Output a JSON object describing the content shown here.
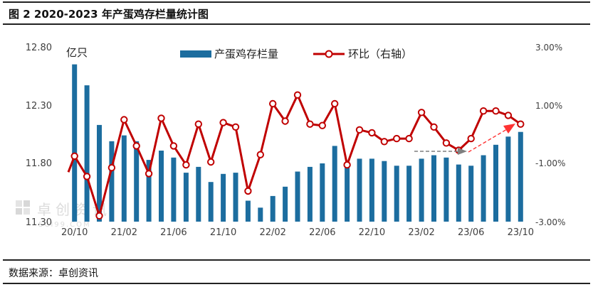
{
  "header": {
    "title": "图 2 2020-2023 年产蛋鸡存栏量统计图"
  },
  "footer": {
    "source": "数据来源：卓创资讯"
  },
  "watermark": {
    "text": "卓创资讯",
    "sub": "SCI99.COM"
  },
  "colors": {
    "bar": "#1c6d9f",
    "line": "#c00000",
    "marker_fill": "#ffffff",
    "axis_text": "#404040",
    "arrow": "#7f7f7f",
    "arrow_red": "#ff3333"
  },
  "chart_data": {
    "type": "bar+line",
    "left_unit": "亿只",
    "left_ticks": [
      "12.80",
      "12.30",
      "11.80",
      "11.30"
    ],
    "right_ticks": [
      "3.00%",
      "1.00%",
      "-1.00%",
      "-3.00%"
    ],
    "ylim_left": [
      11.3,
      12.8
    ],
    "ylim_right": [
      -3.0,
      3.0
    ],
    "x_tick_labels": [
      "20/10",
      "21/02",
      "21/06",
      "21/10",
      "22/02",
      "22/06",
      "22/10",
      "23/02",
      "23/06",
      "23/10"
    ],
    "categories": [
      "20/10",
      "20/11",
      "20/12",
      "21/01",
      "21/02",
      "21/03",
      "21/04",
      "21/05",
      "21/06",
      "21/07",
      "21/08",
      "21/09",
      "21/10",
      "21/11",
      "21/12",
      "22/01",
      "22/02",
      "22/03",
      "22/04",
      "22/05",
      "22/06",
      "22/07",
      "22/08",
      "22/09",
      "22/10",
      "22/11",
      "22/12",
      "23/01",
      "23/02",
      "23/03",
      "23/04",
      "23/05",
      "23/06",
      "23/07",
      "23/08",
      "23/09",
      "23/10"
    ],
    "series": [
      {
        "name": "产蛋鸡存栏量",
        "axis": "left",
        "type": "bar",
        "values": [
          12.65,
          12.47,
          12.13,
          11.99,
          12.04,
          11.99,
          11.83,
          11.91,
          11.85,
          11.72,
          11.77,
          11.64,
          11.71,
          11.72,
          11.48,
          11.42,
          11.52,
          11.6,
          11.73,
          11.77,
          11.8,
          11.95,
          11.78,
          11.84,
          11.84,
          11.82,
          11.78,
          11.78,
          11.84,
          11.87,
          11.85,
          11.79,
          11.78,
          11.87,
          11.96,
          12.03,
          12.07
        ]
      },
      {
        "name": "环比（右轴）",
        "axis": "right",
        "type": "line",
        "values": [
          -0.75,
          -1.45,
          -2.8,
          -1.15,
          0.5,
          -0.4,
          -1.35,
          0.55,
          -0.4,
          -1.05,
          0.35,
          -0.95,
          0.4,
          0.25,
          -1.95,
          -0.7,
          1.05,
          0.45,
          1.35,
          0.35,
          0.3,
          1.05,
          -1.05,
          0.15,
          0.05,
          -0.25,
          -0.15,
          -0.15,
          0.75,
          0.25,
          -0.3,
          -0.55,
          -0.15,
          0.8,
          0.8,
          0.65,
          0.35
        ]
      }
    ],
    "grid": false,
    "legend": "top-center"
  }
}
